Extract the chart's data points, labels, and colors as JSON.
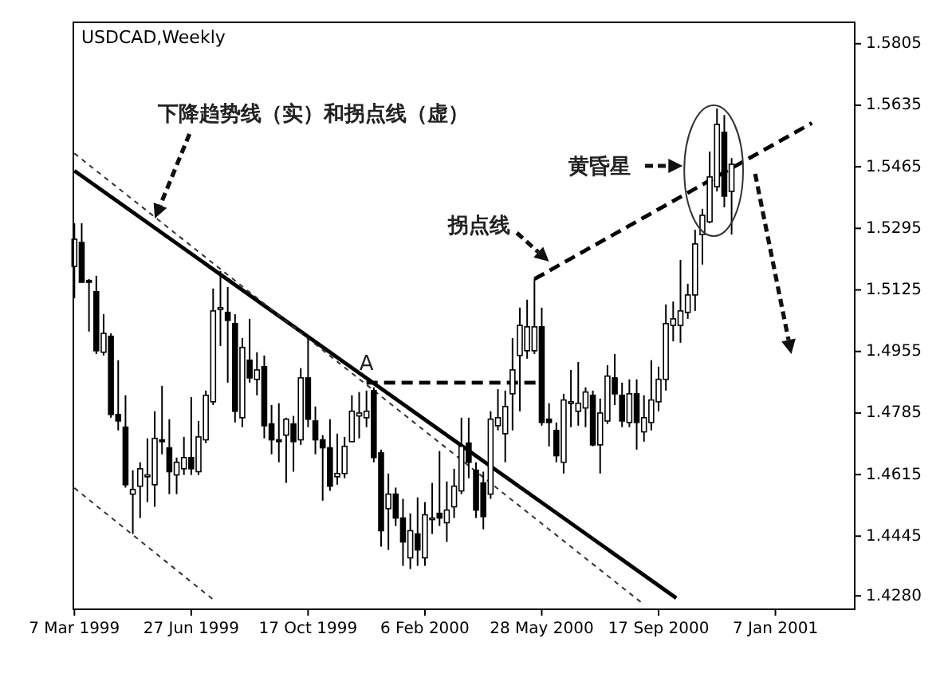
{
  "chart_data": {
    "type": "candlestick",
    "title": "USDCAD,Weekly",
    "x": [
      "1999-03-07",
      "1999-03-14",
      "1999-03-21",
      "1999-03-28",
      "1999-04-04",
      "1999-04-11",
      "1999-04-18",
      "1999-04-25",
      "1999-05-02",
      "1999-05-09",
      "1999-05-16",
      "1999-05-23",
      "1999-05-30",
      "1999-06-06",
      "1999-06-13",
      "1999-06-20",
      "1999-06-27",
      "1999-07-04",
      "1999-07-11",
      "1999-07-18",
      "1999-07-25",
      "1999-08-01",
      "1999-08-08",
      "1999-08-15",
      "1999-08-22",
      "1999-08-29",
      "1999-09-05",
      "1999-09-12",
      "1999-09-19",
      "1999-09-26",
      "1999-10-03",
      "1999-10-10",
      "1999-10-17",
      "1999-10-24",
      "1999-10-31",
      "1999-11-07",
      "1999-11-14",
      "1999-11-21",
      "1999-11-28",
      "1999-12-05",
      "1999-12-12",
      "1999-12-19",
      "1999-12-26",
      "2000-01-02",
      "2000-01-09",
      "2000-01-16",
      "2000-01-23",
      "2000-01-30",
      "2000-02-06",
      "2000-02-13",
      "2000-02-20",
      "2000-02-27",
      "2000-03-05",
      "2000-03-12",
      "2000-03-19",
      "2000-03-26",
      "2000-04-02",
      "2000-04-09",
      "2000-04-16",
      "2000-04-23",
      "2000-04-30",
      "2000-05-07",
      "2000-05-14",
      "2000-05-21",
      "2000-05-28",
      "2000-06-04",
      "2000-06-11",
      "2000-06-18",
      "2000-06-25",
      "2000-07-02",
      "2000-07-09",
      "2000-07-16",
      "2000-07-23",
      "2000-07-30",
      "2000-08-06",
      "2000-08-13",
      "2000-08-20",
      "2000-08-27",
      "2000-09-03",
      "2000-09-10",
      "2000-09-17",
      "2000-09-24",
      "2000-10-01",
      "2000-10-08",
      "2000-10-15",
      "2000-10-22",
      "2000-10-29",
      "2000-11-05",
      "2000-11-12",
      "2000-11-19",
      "2000-11-26"
    ],
    "ohlc": [
      [
        1.519,
        1.5309,
        1.5102,
        1.5265
      ],
      [
        1.5256,
        1.5309,
        1.5146,
        1.5146
      ],
      [
        1.5151,
        1.5155,
        1.501,
        1.5146
      ],
      [
        1.512,
        1.5164,
        1.4948,
        1.4957
      ],
      [
        1.4953,
        1.5058,
        1.4944,
        1.5005
      ],
      [
        1.4997,
        1.5005,
        1.4772,
        1.4781
      ],
      [
        1.4781,
        1.4931,
        1.4737,
        1.4763
      ],
      [
        1.4746,
        1.4834,
        1.4579,
        1.4587
      ],
      [
        1.4561,
        1.4627,
        1.4451,
        1.4574
      ],
      [
        1.4583,
        1.4649,
        1.4495,
        1.4631
      ],
      [
        1.4609,
        1.4715,
        1.4539,
        1.4614
      ],
      [
        1.4587,
        1.479,
        1.4526,
        1.4715
      ],
      [
        1.4711,
        1.486,
        1.4671,
        1.4706
      ],
      [
        1.4689,
        1.4768,
        1.4561,
        1.4623
      ],
      [
        1.4614,
        1.4662,
        1.4561,
        1.4649
      ],
      [
        1.4631,
        1.4719,
        1.4614,
        1.4662
      ],
      [
        1.4662,
        1.4829,
        1.4614,
        1.4631
      ],
      [
        1.4623,
        1.4763,
        1.4614,
        1.4719
      ],
      [
        1.4711,
        1.4847,
        1.4702,
        1.4834
      ],
      [
        1.4816,
        1.5129,
        1.4807,
        1.5067
      ],
      [
        1.5071,
        1.5177,
        1.497,
        1.5076
      ],
      [
        1.5063,
        1.5133,
        1.4869,
        1.5041
      ],
      [
        1.5032,
        1.5058,
        1.4759,
        1.479
      ],
      [
        1.4772,
        1.4992,
        1.4746,
        1.4966
      ],
      [
        1.4931,
        1.5045,
        1.4869,
        1.4882
      ],
      [
        1.4878,
        1.4953,
        1.4834,
        1.4904
      ],
      [
        1.4913,
        1.4944,
        1.4715,
        1.475
      ],
      [
        1.4755,
        1.4807,
        1.4671,
        1.4711
      ],
      [
        1.4711,
        1.4812,
        1.4649,
        1.4706
      ],
      [
        1.4724,
        1.4772,
        1.4592,
        1.4768
      ],
      [
        1.4755,
        1.4777,
        1.4623,
        1.4706
      ],
      [
        1.4711,
        1.4909,
        1.4697,
        1.4882
      ],
      [
        1.4882,
        1.4992,
        1.4746,
        1.4768
      ],
      [
        1.4763,
        1.4803,
        1.4671,
        1.4711
      ],
      [
        1.4711,
        1.4724,
        1.4543,
        1.4689
      ],
      [
        1.4689,
        1.4768,
        1.457,
        1.4583
      ],
      [
        1.4609,
        1.4728,
        1.4587,
        1.4618
      ],
      [
        1.4618,
        1.4719,
        1.4605,
        1.4693
      ],
      [
        1.4706,
        1.4834,
        1.4706,
        1.479
      ],
      [
        1.4777,
        1.4843,
        1.4715,
        1.4785
      ],
      [
        1.4772,
        1.4847,
        1.4746,
        1.479
      ],
      [
        1.4847,
        1.4856,
        1.4649,
        1.4662
      ],
      [
        1.4675,
        1.4684,
        1.4416,
        1.446
      ],
      [
        1.4521,
        1.4618,
        1.4407,
        1.4561
      ],
      [
        1.4561,
        1.4579,
        1.4473,
        1.4495
      ],
      [
        1.4495,
        1.4548,
        1.4363,
        1.4429
      ],
      [
        1.4385,
        1.4508,
        1.4354,
        1.446
      ],
      [
        1.4451,
        1.4552,
        1.4363,
        1.4407
      ],
      [
        1.4385,
        1.4539,
        1.4363,
        1.4504
      ],
      [
        1.4491,
        1.4592,
        1.4451,
        1.4495
      ],
      [
        1.4508,
        1.468,
        1.4473,
        1.4495
      ],
      [
        1.4482,
        1.4596,
        1.4429,
        1.4517
      ],
      [
        1.4526,
        1.4631,
        1.4495,
        1.4583
      ],
      [
        1.457,
        1.4772,
        1.4561,
        1.4693
      ],
      [
        1.4702,
        1.4772,
        1.4605,
        1.4649
      ],
      [
        1.4627,
        1.4649,
        1.4495,
        1.4517
      ],
      [
        1.4592,
        1.4623,
        1.4464,
        1.4499
      ],
      [
        1.4561,
        1.479,
        1.4548,
        1.4768
      ],
      [
        1.475,
        1.4851,
        1.4737,
        1.4772
      ],
      [
        1.4728,
        1.4847,
        1.4649,
        1.4803
      ],
      [
        1.4838,
        1.4992,
        1.4737,
        1.4904
      ],
      [
        1.4944,
        1.5076,
        1.479,
        1.5027
      ],
      [
        1.4957,
        1.5098,
        1.4935,
        1.5023
      ],
      [
        1.4957,
        1.5155,
        1.4948,
        1.5023
      ],
      [
        1.5023,
        1.5076,
        1.475,
        1.4759
      ],
      [
        1.4768,
        1.4812,
        1.4693,
        1.4759
      ],
      [
        1.4737,
        1.4759,
        1.4649,
        1.4667
      ],
      [
        1.4649,
        1.4838,
        1.4618,
        1.4821
      ],
      [
        1.4812,
        1.4904,
        1.4746,
        1.4816
      ],
      [
        1.479,
        1.4926,
        1.475,
        1.4812
      ],
      [
        1.4799,
        1.4856,
        1.4746,
        1.4843
      ],
      [
        1.4834,
        1.4847,
        1.4693,
        1.4697
      ],
      [
        1.4697,
        1.4825,
        1.4618,
        1.4785
      ],
      [
        1.4763,
        1.4917,
        1.4755,
        1.4887
      ],
      [
        1.4882,
        1.4948,
        1.4807,
        1.4838
      ],
      [
        1.4834,
        1.4869,
        1.4746,
        1.4763
      ],
      [
        1.4759,
        1.4878,
        1.4746,
        1.4838
      ],
      [
        1.4838,
        1.4878,
        1.4684,
        1.4759
      ],
      [
        1.4733,
        1.4834,
        1.4706,
        1.4772
      ],
      [
        1.4759,
        1.4931,
        1.4737,
        1.4821
      ],
      [
        1.4816,
        1.4913,
        1.479,
        1.4878
      ],
      [
        1.4878,
        1.5085,
        1.4847,
        1.5032
      ],
      [
        1.5027,
        1.5093,
        1.4983,
        1.5045
      ],
      [
        1.5027,
        1.5208,
        1.4979,
        1.5067
      ],
      [
        1.5063,
        1.5142,
        1.5045,
        1.5111
      ],
      [
        1.5111,
        1.5291,
        1.5067,
        1.5252
      ],
      [
        1.5278,
        1.5349,
        1.5195,
        1.5331
      ],
      [
        1.5313,
        1.5507,
        1.5309,
        1.5437
      ],
      [
        1.541,
        1.5626,
        1.5397,
        1.5582
      ],
      [
        1.556,
        1.5608,
        1.5353,
        1.5384
      ],
      [
        1.5397,
        1.5489,
        1.5278,
        1.5472
      ]
    ],
    "series": [
      {
        "type": "line",
        "x": [
          "1999-03-07",
          "2000-10-04"
        ],
        "values": [
          1.5454,
          1.4274
        ],
        "color": "#000000",
        "line_style": "solid"
      },
      {
        "type": "line",
        "x": [
          "1999-03-07",
          "2000-09-03"
        ],
        "values": [
          1.5502,
          1.4256
        ],
        "color": "#333333",
        "line_style": "dotted"
      },
      {
        "type": "line",
        "x": [
          "1999-03-07",
          "1999-07-18"
        ],
        "values": [
          1.4578,
          1.427
        ],
        "color": "#333333",
        "line_style": "dotted"
      },
      {
        "type": "line",
        "x": [
          "1999-12-12",
          "2000-05-25"
        ],
        "values": [
          1.4869,
          1.4869
        ],
        "color": "#000000",
        "line_style": "dashed"
      },
      {
        "type": "line",
        "x": [
          "2000-05-21",
          "2001-02-11"
        ],
        "values": [
          1.5155,
          1.5586
        ],
        "color": "#000000",
        "line_style": "dashed"
      }
    ],
    "xlim": [
      "1999-03-06",
      "2001-03-24"
    ],
    "xticks": [
      {
        "value": "1999-03-07",
        "label": "7 Mar 1999"
      },
      {
        "value": "1999-06-27",
        "label": "27 Jun 1999"
      },
      {
        "value": "1999-10-17",
        "label": "17 Oct 1999"
      },
      {
        "value": "2000-02-06",
        "label": "6 Feb 2000"
      },
      {
        "value": "2000-05-28",
        "label": "28 May 2000"
      },
      {
        "value": "2000-09-17",
        "label": "17 Sep 2000"
      },
      {
        "value": "2001-01-07",
        "label": "7 Jan 2001"
      }
    ],
    "ylim": [
      1.4243,
      1.5864
    ],
    "yticks": [
      1.5805,
      1.5635,
      1.5465,
      1.5295,
      1.5125,
      1.4955,
      1.4785,
      1.4615,
      1.4445,
      {
        "value": 1.428,
        "label": "1.4280"
      }
    ],
    "annotations": [
      "下降趋势线（实）和拐点线（虚）",
      {
        "text": "拐点线",
        "x": "2000-06-04",
        "y": 1.5203
      },
      "黄昏星",
      {
        "text": "A",
        "x": "1999-12-12",
        "y": 1.4869
      }
    ]
  }
}
